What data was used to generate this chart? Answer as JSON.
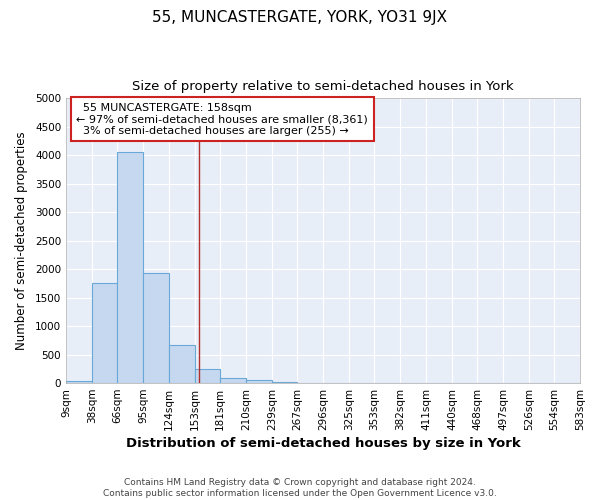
{
  "title": "55, MUNCASTERGATE, YORK, YO31 9JX",
  "subtitle": "Size of property relative to semi-detached houses in York",
  "xlabel": "Distribution of semi-detached houses by size in York",
  "ylabel": "Number of semi-detached properties",
  "footer_line1": "Contains HM Land Registry data © Crown copyright and database right 2024.",
  "footer_line2": "Contains public sector information licensed under the Open Government Licence v3.0.",
  "bin_labels": [
    "9sqm",
    "38sqm",
    "66sqm",
    "95sqm",
    "124sqm",
    "153sqm",
    "181sqm",
    "210sqm",
    "239sqm",
    "267sqm",
    "296sqm",
    "325sqm",
    "353sqm",
    "382sqm",
    "411sqm",
    "440sqm",
    "468sqm",
    "497sqm",
    "526sqm",
    "554sqm",
    "583sqm"
  ],
  "bin_edges": [
    9,
    38,
    66,
    95,
    124,
    153,
    181,
    210,
    239,
    267,
    296,
    325,
    353,
    382,
    411,
    440,
    468,
    497,
    526,
    554,
    583
  ],
  "bar_heights": [
    35,
    1750,
    4050,
    1930,
    660,
    240,
    90,
    50,
    10,
    0,
    0,
    0,
    0,
    0,
    0,
    0,
    0,
    0,
    0,
    0
  ],
  "bar_color": "#c5d8f0",
  "bar_edge_color": "#6aa8d8",
  "bar_linewidth": 0.8,
  "property_size": 158,
  "property_label": "55 MUNCASTERGATE: 158sqm",
  "pct_smaller": 97,
  "n_smaller": 8361,
  "pct_larger": 3,
  "n_larger": 255,
  "vline_color": "#b03030",
  "vline_linewidth": 1.0,
  "annotation_box_edgecolor": "#cc2222",
  "ylim": [
    0,
    5000
  ],
  "yticks": [
    0,
    500,
    1000,
    1500,
    2000,
    2500,
    3000,
    3500,
    4000,
    4500,
    5000
  ],
  "background_color": "#ffffff",
  "plot_bg_color": "#e8eef8",
  "title_fontsize": 11,
  "subtitle_fontsize": 9.5,
  "xlabel_fontsize": 9.5,
  "ylabel_fontsize": 8.5,
  "tick_fontsize": 7.5,
  "annotation_fontsize": 8,
  "footer_fontsize": 6.5
}
